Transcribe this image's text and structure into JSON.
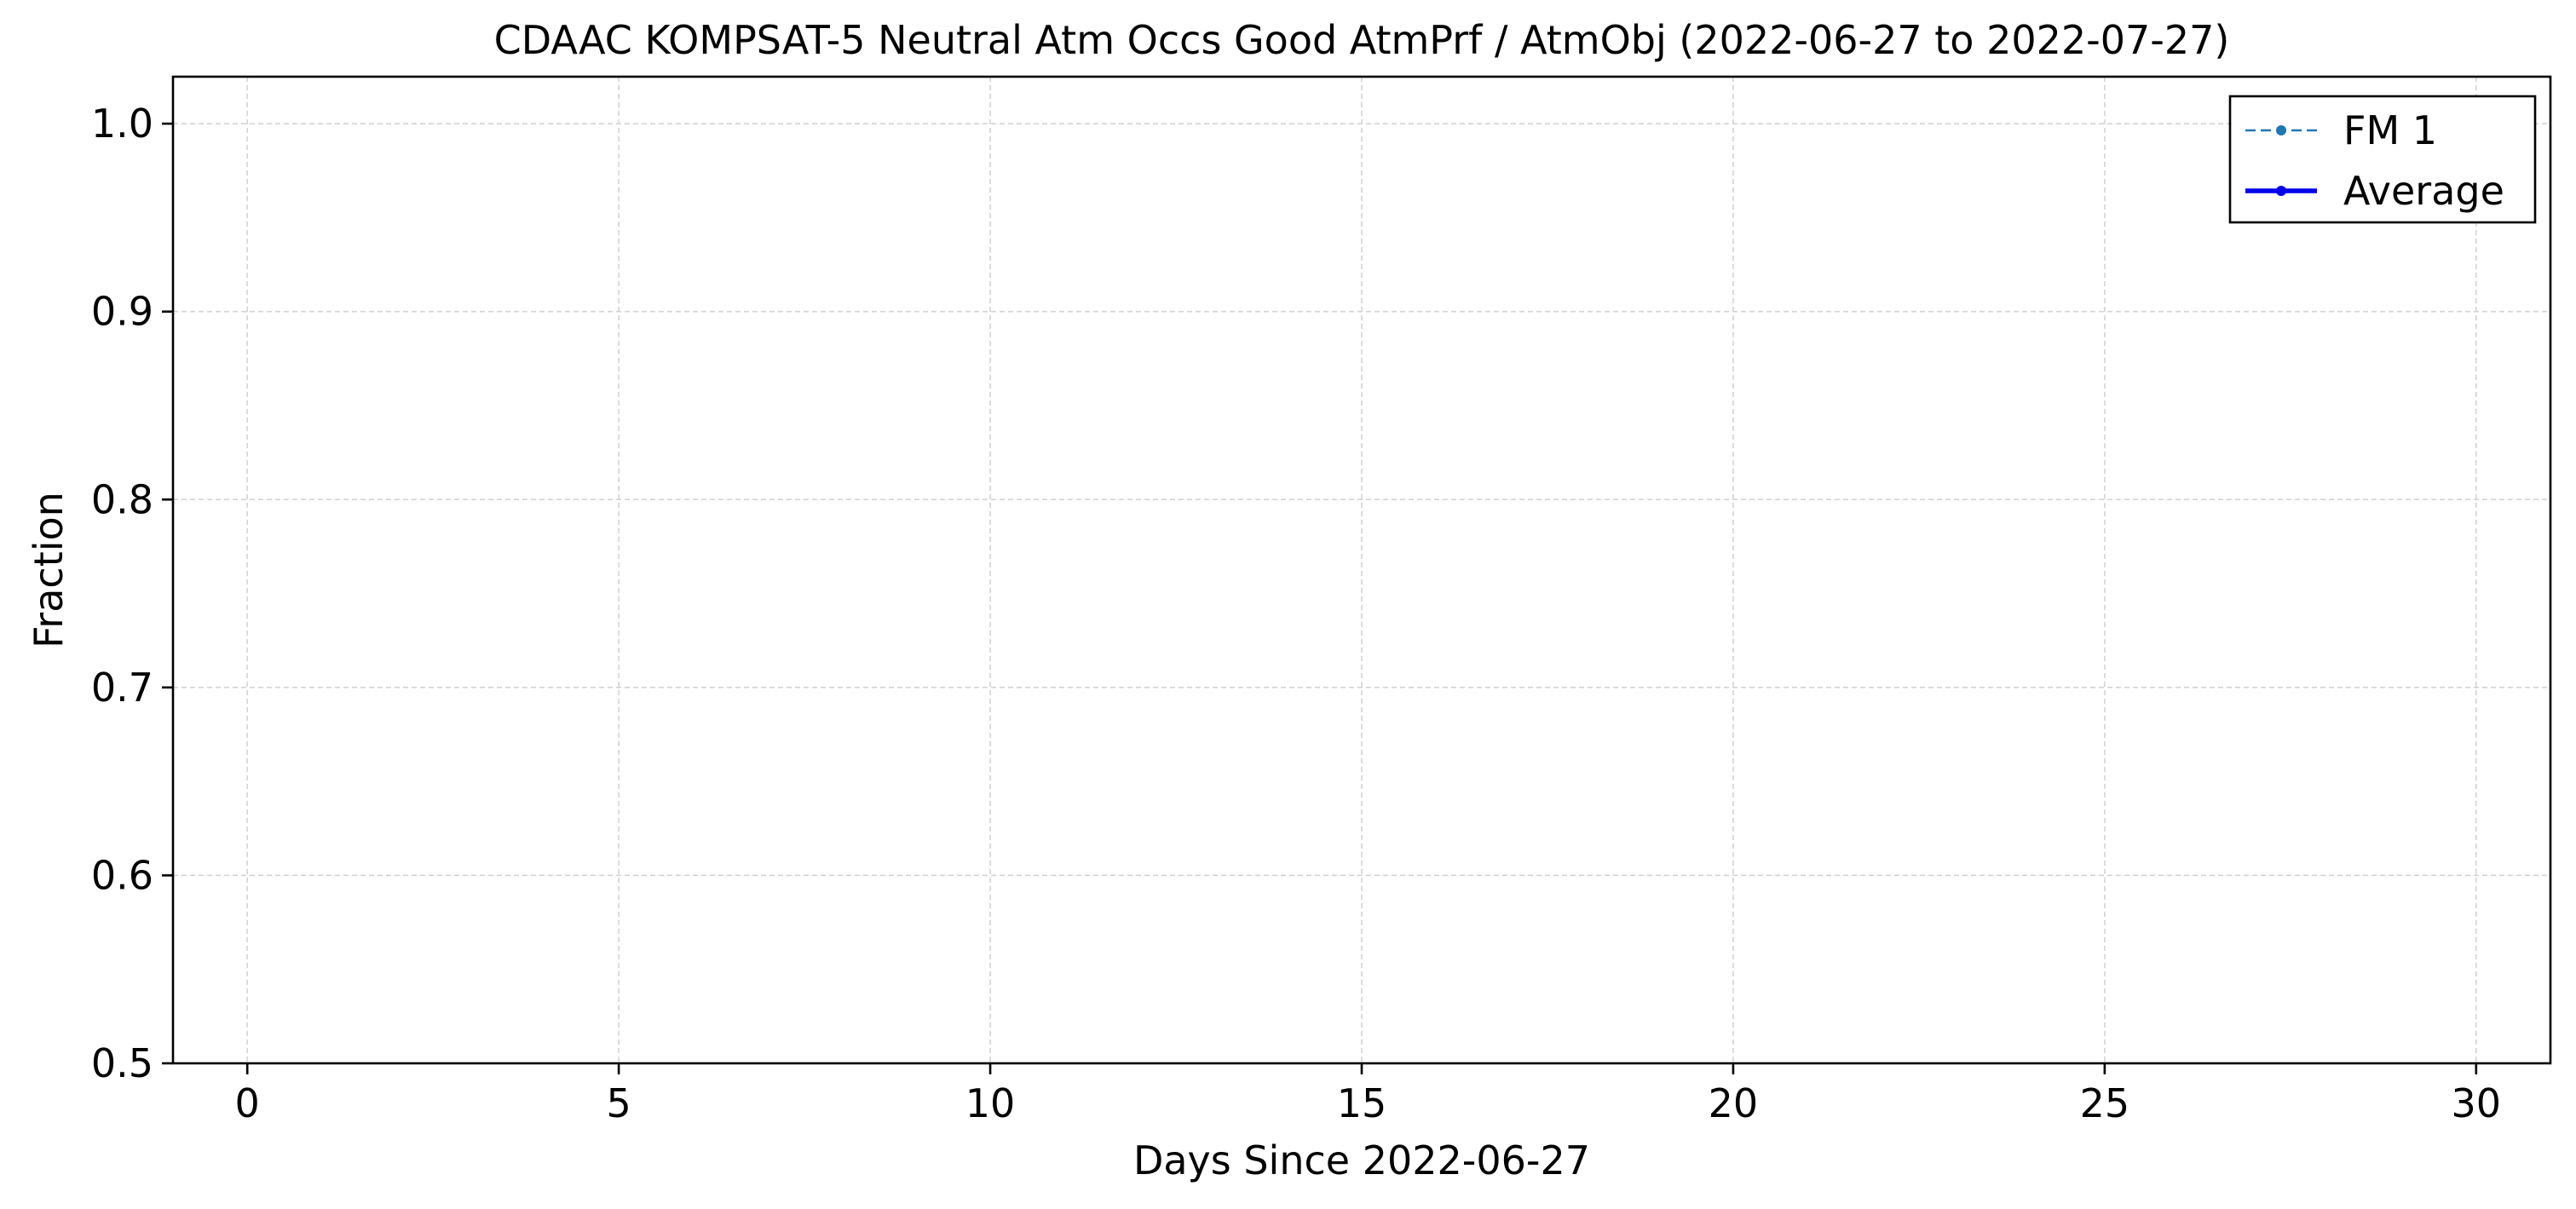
{
  "chart_data": {
    "type": "line",
    "title": "CDAAC KOMPSAT-5 Neutral Atm Occs Good AtmPrf / AtmObj (2022-06-27 to 2022-07-27)",
    "xlabel": "Days Since 2022-06-27",
    "ylabel": "Fraction",
    "xlim": [
      -1,
      31
    ],
    "ylim": [
      0.5,
      1.025
    ],
    "x_ticks": [
      0,
      5,
      10,
      15,
      20,
      25,
      30
    ],
    "x_tick_labels": [
      "0",
      "5",
      "10",
      "15",
      "20",
      "25",
      "30"
    ],
    "y_ticks": [
      0.5,
      0.6,
      0.7,
      0.8,
      0.9,
      1.0
    ],
    "y_tick_labels": [
      "0.5",
      "0.6",
      "0.7",
      "0.8",
      "0.9",
      "1.0"
    ],
    "grid": true,
    "legend_position": "top-right",
    "series": [
      {
        "name": "FM 1",
        "color": "#1f77b4",
        "line_style": "dashed",
        "marker": "dot",
        "x": [],
        "y": []
      },
      {
        "name": "Average",
        "color": "#0000ee",
        "line_style": "solid",
        "marker": "dot",
        "x": [],
        "y": []
      }
    ]
  }
}
